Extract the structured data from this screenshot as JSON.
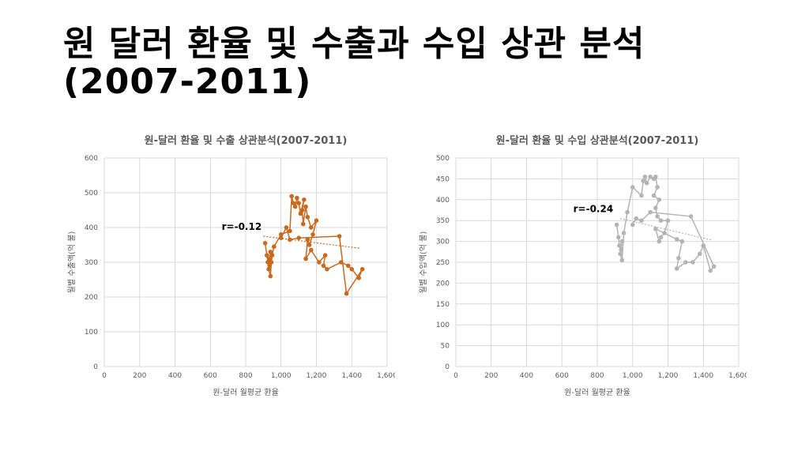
{
  "slide": {
    "title_line1": "원 달러 환율 및 수출과 수입 상관 분석",
    "title_line2": "(2007-2011)"
  },
  "chart_data": [
    {
      "id": "export",
      "type": "scatter",
      "title": "원-달러 환율 및 수출 상관분석(2007-2011)",
      "xlabel": "원-달러 월평균 환율",
      "ylabel": "월별 수출액(억 불)",
      "xlim": [
        0,
        1600
      ],
      "ylim": [
        0,
        600
      ],
      "xticks": [
        0,
        200,
        400,
        600,
        800,
        1000,
        1200,
        1400,
        1600
      ],
      "yticks": [
        0,
        100,
        200,
        300,
        400,
        500,
        600
      ],
      "xtick_labels": [
        "0",
        "200",
        "400",
        "600",
        "800",
        "1,000",
        "1,200",
        "1,400",
        "1,600"
      ],
      "ytick_labels": [
        "0",
        "100",
        "200",
        "300",
        "400",
        "500",
        "600"
      ],
      "grid": true,
      "annotation": "r=-0.12",
      "color": "#c8691e",
      "points": [
        [
          910,
          355
        ],
        [
          920,
          320
        ],
        [
          925,
          300
        ],
        [
          935,
          290
        ],
        [
          940,
          330
        ],
        [
          935,
          310
        ],
        [
          930,
          280
        ],
        [
          940,
          260
        ],
        [
          945,
          300
        ],
        [
          950,
          320
        ],
        [
          960,
          345
        ],
        [
          1000,
          380
        ],
        [
          1050,
          390
        ],
        [
          1060,
          490
        ],
        [
          1070,
          470
        ],
        [
          1080,
          460
        ],
        [
          1090,
          485
        ],
        [
          1100,
          470
        ],
        [
          1110,
          440
        ],
        [
          1130,
          480
        ],
        [
          1120,
          450
        ],
        [
          1125,
          410
        ],
        [
          1140,
          460
        ],
        [
          1150,
          430
        ],
        [
          1170,
          400
        ],
        [
          1200,
          420
        ],
        [
          1180,
          380
        ],
        [
          1160,
          350
        ],
        [
          1150,
          365
        ],
        [
          1140,
          310
        ],
        [
          1170,
          335
        ],
        [
          1215,
          300
        ],
        [
          1250,
          320
        ],
        [
          1240,
          290
        ],
        [
          1260,
          280
        ],
        [
          1340,
          300
        ],
        [
          1380,
          290
        ],
        [
          1400,
          280
        ],
        [
          1440,
          255
        ],
        [
          1460,
          280
        ],
        [
          1370,
          210
        ],
        [
          1330,
          375
        ],
        [
          1100,
          370
        ],
        [
          1050,
          365
        ],
        [
          1030,
          400
        ],
        [
          1000,
          370
        ]
      ],
      "trend_line": [
        [
          900,
          375
        ],
        [
          1450,
          340
        ]
      ]
    },
    {
      "id": "import",
      "type": "scatter",
      "title": "원-달러 환율 및 수입 상관분석(2007-2011)",
      "xlabel": "원-달러 월평균 환율",
      "ylabel": "월별 수입액(억 불)",
      "xlim": [
        0,
        1600
      ],
      "ylim": [
        0,
        500
      ],
      "xticks": [
        0,
        200,
        400,
        600,
        800,
        1000,
        1200,
        1400,
        1600
      ],
      "yticks": [
        0,
        50,
        100,
        150,
        200,
        250,
        300,
        350,
        400,
        450,
        500
      ],
      "xtick_labels": [
        "0",
        "200",
        "400",
        "600",
        "800",
        "1,000",
        "1,200",
        "1,400",
        "1,600"
      ],
      "ytick_labels": [
        "0",
        "50",
        "100",
        "150",
        "200",
        "250",
        "300",
        "350",
        "400",
        "450",
        "500"
      ],
      "grid": true,
      "annotation": "r=-0.24",
      "color": "#b4b4b4",
      "points": [
        [
          910,
          340
        ],
        [
          920,
          310
        ],
        [
          925,
          290
        ],
        [
          935,
          280
        ],
        [
          940,
          300
        ],
        [
          930,
          270
        ],
        [
          940,
          255
        ],
        [
          950,
          320
        ],
        [
          970,
          370
        ],
        [
          1000,
          430
        ],
        [
          1050,
          410
        ],
        [
          1060,
          445
        ],
        [
          1070,
          455
        ],
        [
          1080,
          440
        ],
        [
          1100,
          455
        ],
        [
          1120,
          450
        ],
        [
          1130,
          455
        ],
        [
          1140,
          430
        ],
        [
          1120,
          410
        ],
        [
          1150,
          400
        ],
        [
          1130,
          380
        ],
        [
          1140,
          360
        ],
        [
          1160,
          350
        ],
        [
          1200,
          350
        ],
        [
          1180,
          320
        ],
        [
          1160,
          310
        ],
        [
          1150,
          300
        ],
        [
          1130,
          330
        ],
        [
          1250,
          305
        ],
        [
          1280,
          300
        ],
        [
          1260,
          260
        ],
        [
          1250,
          235
        ],
        [
          1300,
          250
        ],
        [
          1340,
          250
        ],
        [
          1380,
          270
        ],
        [
          1400,
          290
        ],
        [
          1440,
          230
        ],
        [
          1460,
          240
        ],
        [
          1330,
          360
        ],
        [
          1100,
          370
        ],
        [
          1050,
          350
        ],
        [
          1020,
          355
        ],
        [
          1000,
          340
        ]
      ],
      "trend_line": [
        [
          930,
          355
        ],
        [
          1450,
          303
        ]
      ]
    }
  ]
}
